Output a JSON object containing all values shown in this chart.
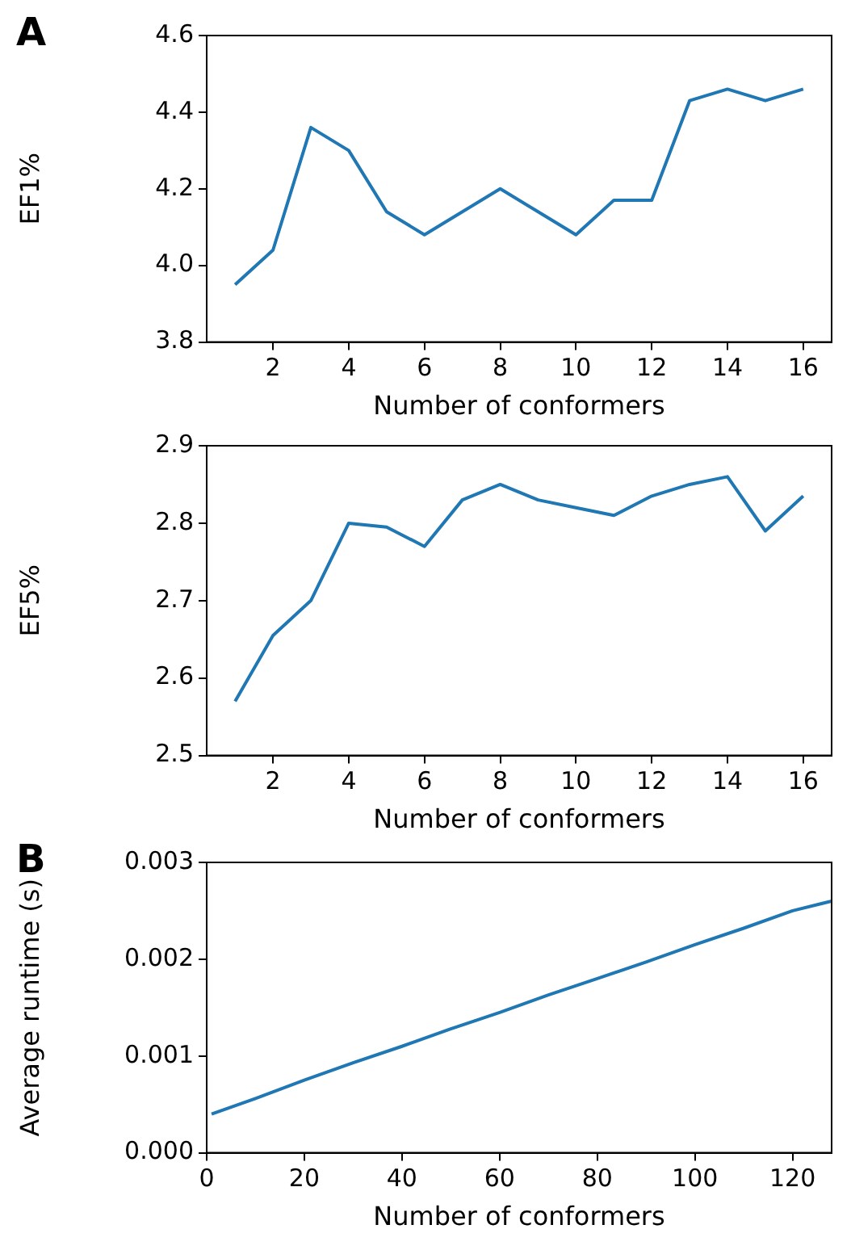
{
  "chart_data": [
    {
      "type": "line",
      "xlabel": "Number of conformers",
      "ylabel": "EF1%",
      "annotations": [
        "A"
      ],
      "x": [
        1,
        2,
        3,
        4,
        5,
        6,
        7,
        8,
        9,
        10,
        11,
        12,
        13,
        14,
        15,
        16
      ],
      "series": [
        {
          "color": "#1f77b4",
          "values": [
            3.95,
            4.04,
            4.36,
            4.3,
            4.14,
            4.08,
            4.14,
            4.2,
            4.14,
            4.08,
            4.17,
            4.17,
            4.43,
            4.46,
            4.43,
            4.46
          ]
        }
      ],
      "xlim": [
        0.25,
        16.75
      ],
      "xticks": [
        2,
        4,
        6,
        8,
        10,
        12,
        14,
        16
      ],
      "ylim": [
        3.8,
        4.6
      ],
      "yticks": [
        {
          "value": 3.8,
          "label": "3.8"
        },
        {
          "value": 4.0,
          "label": "4.0"
        },
        {
          "value": 4.2,
          "label": "4.2"
        },
        {
          "value": 4.4,
          "label": "4.4"
        },
        {
          "value": 4.6,
          "label": "4.6"
        }
      ],
      "grid": false,
      "legend": false,
      "marker": "none",
      "line_style": "solid"
    },
    {
      "type": "line",
      "xlabel": "Number of conformers",
      "ylabel": "EF5%",
      "x": [
        1,
        2,
        3,
        4,
        5,
        6,
        7,
        8,
        9,
        10,
        11,
        12,
        13,
        14,
        15,
        16
      ],
      "series": [
        {
          "color": "#1f77b4",
          "values": [
            2.57,
            2.655,
            2.7,
            2.8,
            2.795,
            2.77,
            2.83,
            2.85,
            2.83,
            2.82,
            2.81,
            2.835,
            2.85,
            2.86,
            2.79,
            2.835
          ]
        }
      ],
      "xlim": [
        0.25,
        16.75
      ],
      "xticks": [
        2,
        4,
        6,
        8,
        10,
        12,
        14,
        16
      ],
      "ylim": [
        2.5,
        2.9
      ],
      "yticks": [
        {
          "value": 2.5,
          "label": "2.5"
        },
        {
          "value": 2.6,
          "label": "2.6"
        },
        {
          "value": 2.7,
          "label": "2.7"
        },
        {
          "value": 2.8,
          "label": "2.8"
        },
        {
          "value": 2.9,
          "label": "2.9"
        }
      ],
      "grid": false,
      "legend": false,
      "marker": "none",
      "line_style": "solid"
    },
    {
      "type": "line",
      "xlabel": "Number of conformers",
      "ylabel": "Average runtime (s)",
      "annotations": [
        "B"
      ],
      "x": [
        1,
        10,
        20,
        30,
        40,
        50,
        60,
        70,
        80,
        90,
        100,
        110,
        120,
        128
      ],
      "series": [
        {
          "color": "#1f77b4",
          "values": [
            0.0004,
            0.00056,
            0.00075,
            0.00093,
            0.0011,
            0.00128,
            0.00145,
            0.00163,
            0.0018,
            0.00197,
            0.00215,
            0.00232,
            0.0025,
            0.0026
          ]
        }
      ],
      "xlim": [
        0,
        128
      ],
      "xticks": [
        0,
        20,
        40,
        60,
        80,
        100,
        120
      ],
      "ylim": [
        0,
        0.003
      ],
      "yticks": [
        {
          "value": 0,
          "label": "0.000"
        },
        0.001,
        0.002,
        0.003
      ],
      "grid": false,
      "legend": false,
      "marker": "none",
      "line_style": "solid"
    }
  ]
}
